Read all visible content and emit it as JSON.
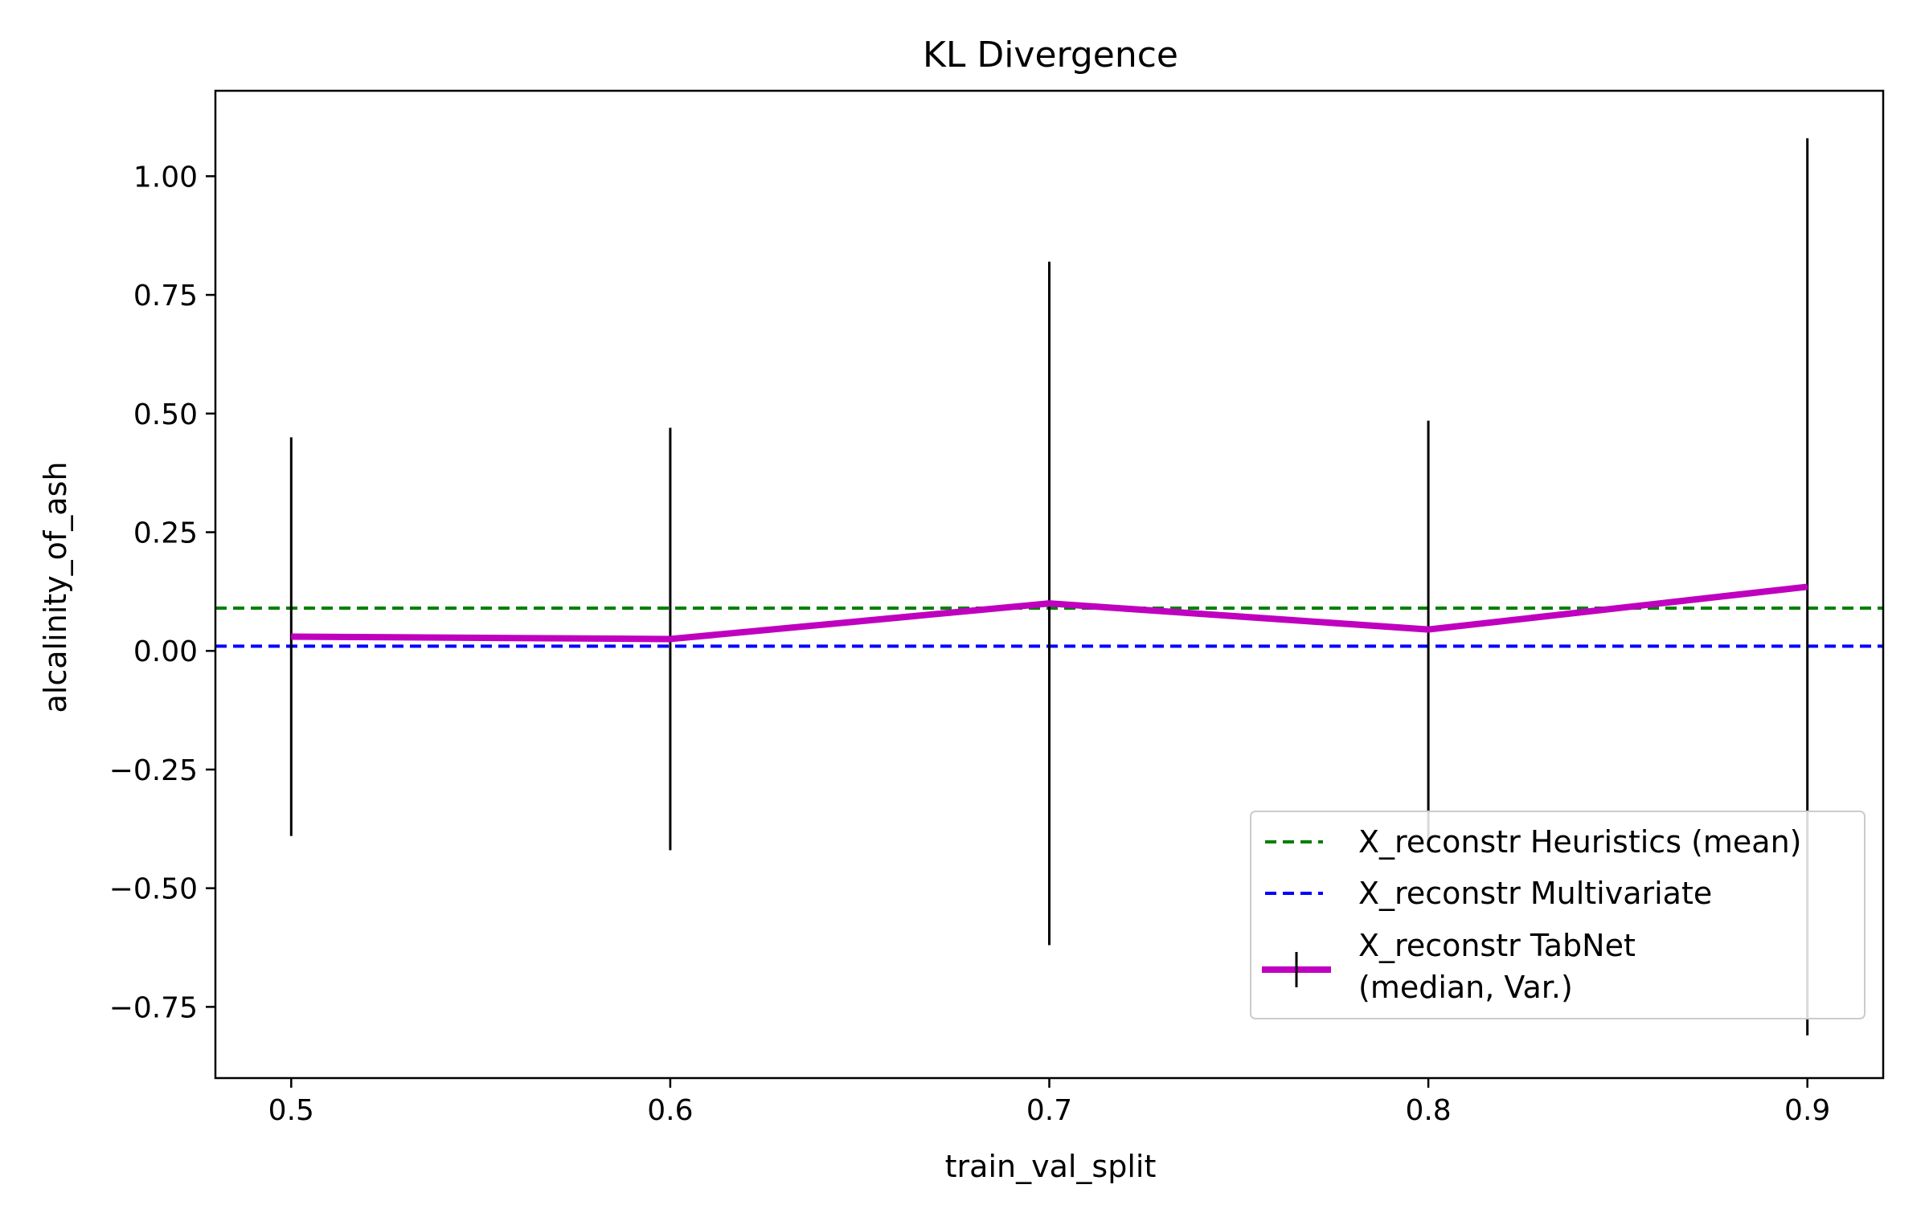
{
  "chart_data": {
    "type": "line",
    "title": "KL Divergence",
    "xlabel": "train_val_split",
    "ylabel": "alcalinity_of_ash",
    "xlim": [
      0.48,
      0.92
    ],
    "ylim": [
      -0.9,
      1.18
    ],
    "grid": false,
    "legend_position": "lower-right",
    "x_ticks": [
      0.5,
      0.6,
      0.7,
      0.8,
      0.9
    ],
    "x_tick_labels": [
      "0.5",
      "0.6",
      "0.7",
      "0.8",
      "0.9"
    ],
    "y_ticks": [
      -0.75,
      -0.5,
      -0.25,
      0.0,
      0.25,
      0.5,
      0.75,
      1.0
    ],
    "y_tick_labels": [
      "−0.75",
      "−0.50",
      "−0.25",
      "0.00",
      "0.25",
      "0.50",
      "0.75",
      "1.00"
    ],
    "series": [
      {
        "name": "X_reconstr Heuristics (mean)",
        "kind": "hline",
        "y": 0.09,
        "color": "#008000",
        "style": "dashed"
      },
      {
        "name": "X_reconstr Multivariate",
        "kind": "hline",
        "y": 0.01,
        "color": "#0000ff",
        "style": "dashed"
      },
      {
        "name": "X_reconstr TabNet\n(median, Var.)",
        "kind": "errorbar",
        "color": "#bf00bf",
        "error_color": "#000000",
        "x": [
          0.5,
          0.6,
          0.7,
          0.8,
          0.9
        ],
        "y": [
          0.03,
          0.025,
          0.1,
          0.045,
          0.135
        ],
        "y_low": [
          -0.39,
          -0.42,
          -0.62,
          -0.4,
          -0.81
        ],
        "y_high": [
          0.45,
          0.47,
          0.82,
          0.485,
          1.08
        ]
      }
    ],
    "legend": [
      {
        "label_lines": [
          "X_reconstr Heuristics (mean)"
        ],
        "series_index": 0
      },
      {
        "label_lines": [
          "X_reconstr Multivariate"
        ],
        "series_index": 1
      },
      {
        "label_lines": [
          "X_reconstr TabNet",
          "(median, Var.)"
        ],
        "series_index": 2
      }
    ]
  }
}
